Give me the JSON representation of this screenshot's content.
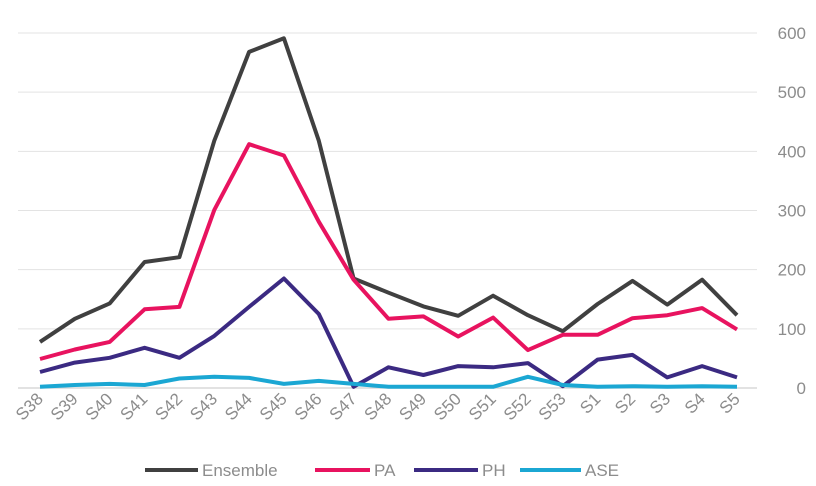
{
  "chart_data": {
    "type": "line",
    "categories": [
      "S38",
      "S39",
      "S40",
      "S41",
      "S42",
      "S43",
      "S44",
      "S45",
      "S46",
      "S47",
      "S48",
      "S49",
      "S50",
      "S51",
      "S52",
      "S53",
      "S1",
      "S2",
      "S3",
      "S4",
      "S5"
    ],
    "series": [
      {
        "name": "Ensemble",
        "color": "#404040",
        "values": [
          78,
          117,
          143,
          213,
          221,
          418,
          568,
          591,
          418,
          185,
          161,
          138,
          122,
          156,
          123,
          96,
          142,
          181,
          141,
          183,
          123
        ]
      },
      {
        "name": "PA",
        "color": "#e8135f",
        "values": [
          49,
          65,
          78,
          133,
          137,
          301,
          412,
          393,
          281,
          183,
          117,
          121,
          87,
          119,
          64,
          90,
          90,
          118,
          123,
          135,
          99
        ]
      },
      {
        "name": "PH",
        "color": "#3b2a82",
        "values": [
          27,
          43,
          51,
          68,
          51,
          88,
          137,
          185,
          125,
          2,
          35,
          22,
          37,
          35,
          42,
          3,
          48,
          56,
          18,
          37,
          18
        ]
      },
      {
        "name": "ASE",
        "color": "#1ba7d3",
        "values": [
          2,
          5,
          7,
          5,
          16,
          19,
          17,
          7,
          12,
          7,
          2,
          2,
          2,
          2,
          19,
          5,
          2,
          3,
          2,
          3,
          2
        ]
      }
    ],
    "y_ticks": [
      "0",
      "100",
      "200",
      "300",
      "400",
      "500",
      "600"
    ],
    "ylim": [
      0,
      600
    ],
    "grid": true,
    "y_axis_position": "right",
    "legend": "bottom"
  }
}
